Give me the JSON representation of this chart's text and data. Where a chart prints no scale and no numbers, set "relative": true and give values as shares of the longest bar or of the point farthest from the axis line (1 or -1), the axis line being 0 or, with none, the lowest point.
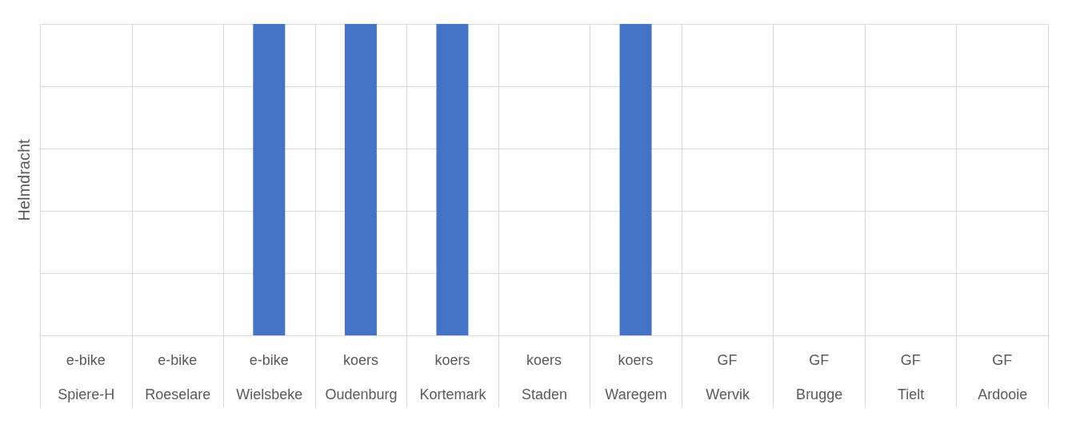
{
  "chart_data": {
    "type": "bar",
    "relative": true,
    "ylabel": "Helmdracht",
    "categories": [
      "Spiere-H",
      "Roeselare",
      "Wielsbeke",
      "Oudenburg",
      "Kortemark",
      "Staden",
      "Waregem",
      "Wervik",
      "Brugge",
      "Tielt",
      "Ardooie"
    ],
    "values": [
      0,
      0,
      1,
      1,
      1,
      0,
      1,
      0,
      0,
      0,
      0
    ],
    "annotations": [
      "e-bike",
      "e-bike",
      "e-bike",
      "koers",
      "koers",
      "koers",
      "koers",
      "GF",
      "GF",
      "GF",
      "GF"
    ],
    "color": "#4472c4",
    "grid": true
  }
}
